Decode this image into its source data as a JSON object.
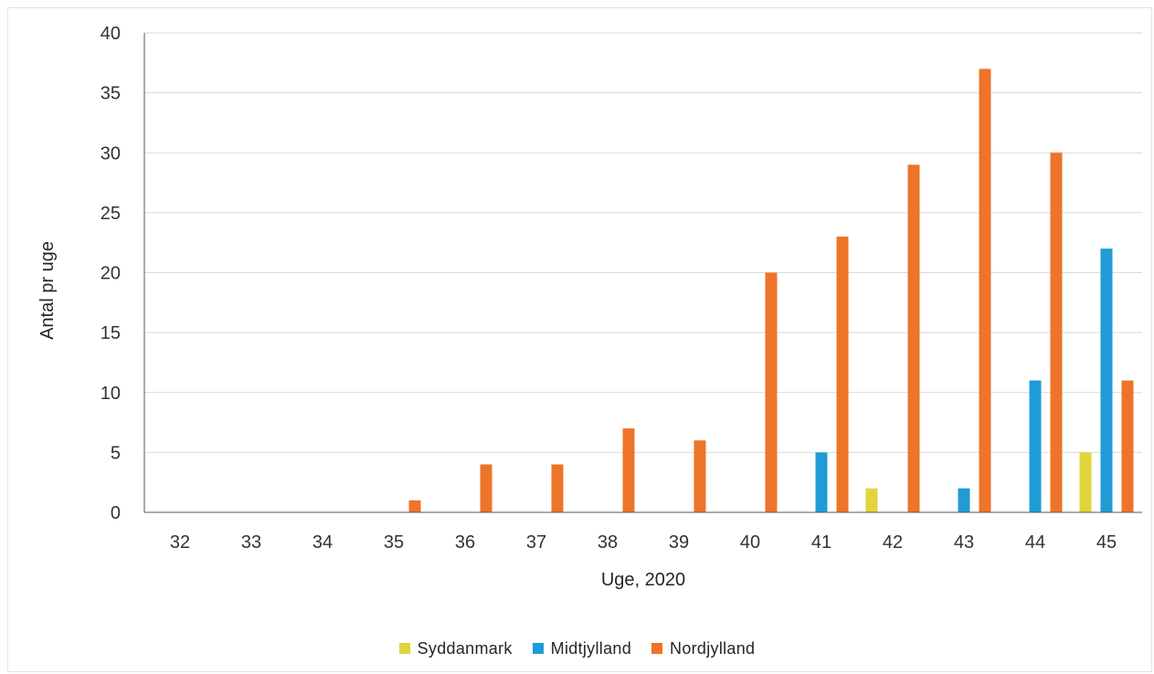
{
  "chart_data": {
    "type": "bar",
    "xlabel": "Uge, 2020",
    "ylabel": "Antal pr uge",
    "ylim": [
      0,
      40
    ],
    "yticks": [
      0,
      5,
      10,
      15,
      20,
      25,
      30,
      35,
      40
    ],
    "grid": true,
    "legend_position": "bottom",
    "categories": [
      "32",
      "33",
      "34",
      "35",
      "36",
      "37",
      "38",
      "39",
      "40",
      "41",
      "42",
      "43",
      "44",
      "45"
    ],
    "series": [
      {
        "name": "Syddanmark",
        "color": "#e2d43b",
        "values": [
          0,
          0,
          0,
          0,
          0,
          0,
          0,
          0,
          0,
          0,
          2,
          0,
          0,
          5
        ]
      },
      {
        "name": "Midtjylland",
        "color": "#1f9bd6",
        "values": [
          0,
          0,
          0,
          0,
          0,
          0,
          0,
          0,
          0,
          5,
          0,
          2,
          11,
          22
        ]
      },
      {
        "name": "Nordjylland",
        "color": "#ed7428",
        "values": [
          0,
          0,
          0,
          1,
          4,
          4,
          7,
          6,
          20,
          23,
          29,
          37,
          30,
          11
        ]
      }
    ]
  }
}
